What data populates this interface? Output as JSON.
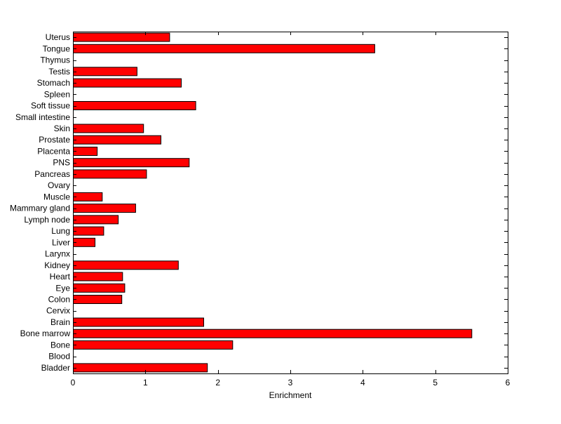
{
  "chart_data": {
    "type": "bar",
    "orientation": "horizontal",
    "categories": [
      "Uterus",
      "Tongue",
      "Thymus",
      "Testis",
      "Stomach",
      "Spleen",
      "Soft tissue",
      "Small intestine",
      "Skin",
      "Prostate",
      "Placenta",
      "PNS",
      "Pancreas",
      "Ovary",
      "Muscle",
      "Mammary gland",
      "Lymph node",
      "Lung",
      "Liver",
      "Larynx",
      "Kidney",
      "Heart",
      "Eye",
      "Colon",
      "Cervix",
      "Brain",
      "Bone marrow",
      "Bone",
      "Blood",
      "Bladder"
    ],
    "values": [
      1.33,
      4.16,
      0,
      0.88,
      1.49,
      0,
      1.69,
      0,
      0.97,
      1.21,
      0.33,
      1.6,
      1.01,
      0,
      0.4,
      0.86,
      0.62,
      0.42,
      0.3,
      0,
      1.45,
      0.68,
      0.71,
      0.67,
      0,
      1.8,
      5.5,
      2.2,
      0,
      1.85
    ],
    "title": "",
    "xlabel": "Enrichment",
    "ylabel": "",
    "xlim": [
      0,
      6
    ],
    "xticks": [
      0,
      1,
      2,
      3,
      4,
      5,
      6
    ],
    "bar_color": "#ff0000",
    "edge_color": "#000000",
    "grid": false
  }
}
